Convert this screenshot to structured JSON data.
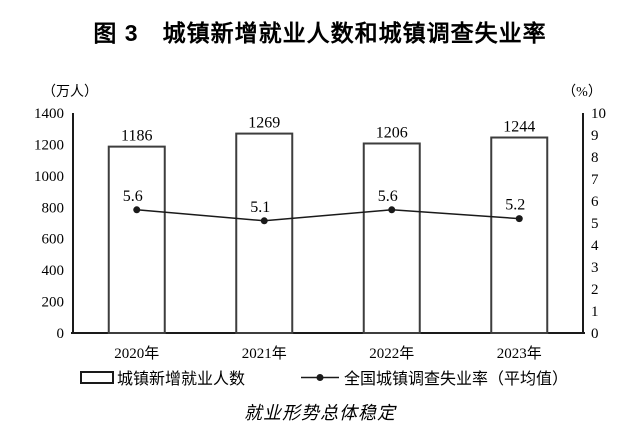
{
  "chart_data": {
    "type": "bar+line",
    "title": "图 3　城镇新增就业人数和城镇调查失业率",
    "caption": "就业形势总体稳定",
    "categories": [
      "2020年",
      "2021年",
      "2022年",
      "2023年"
    ],
    "series": [
      {
        "name": "城镇新增就业人数",
        "type": "bar",
        "axis": "left",
        "values": [
          1186,
          1269,
          1206,
          1244
        ]
      },
      {
        "name": "全国城镇调查失业率（平均值）",
        "type": "line",
        "axis": "right",
        "values": [
          5.6,
          5.1,
          5.6,
          5.2
        ]
      }
    ],
    "left_axis": {
      "unit": "（万人）",
      "min": 0,
      "max": 1400,
      "step": 200,
      "tick_labels": [
        "1400",
        "1200",
        "1000",
        "800",
        "600",
        "400",
        "200",
        "0"
      ]
    },
    "right_axis": {
      "unit": "（%）",
      "min": 0,
      "max": 10,
      "step": 1,
      "tick_labels": [
        "10",
        "9",
        "8",
        "7",
        "6",
        "5",
        "4",
        "3",
        "2",
        "1",
        "0"
      ]
    },
    "legend_position": "bottom",
    "grid": false,
    "colors": {
      "bar_fill": "#ffffff",
      "bar_border": "#3d3d3d",
      "line": "#1a1a1a",
      "text": "#000000",
      "background": "#ffffff"
    }
  }
}
